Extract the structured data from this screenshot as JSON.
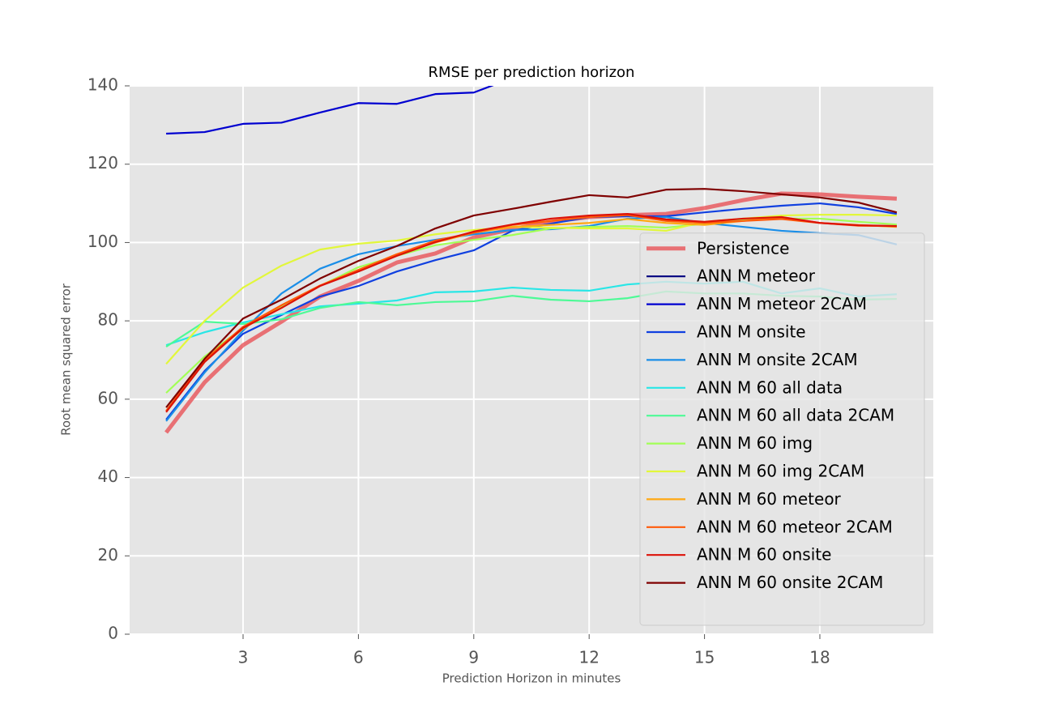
{
  "chart_data": {
    "type": "line",
    "title": "RMSE per prediction horizon",
    "x_label": "Prediction Horizon in minutes",
    "y_label": "Root mean squared error",
    "x": [
      1,
      2,
      3,
      4,
      5,
      6,
      7,
      8,
      9,
      10,
      11,
      12,
      13,
      14,
      15,
      16,
      17,
      18,
      19,
      20
    ],
    "xlim": [
      0.05,
      20.95
    ],
    "ylim": [
      0,
      140
    ],
    "xticks": [
      3,
      6,
      9,
      12,
      15,
      18
    ],
    "yticks": [
      0,
      20,
      40,
      60,
      80,
      100,
      120,
      140
    ],
    "grid": true,
    "legend": "lower right",
    "series": [
      {
        "name": "Persistence",
        "color": "#e8484e",
        "linewidth": 5,
        "alpha": 0.75,
        "values": [
          51.5,
          64.3,
          73.8,
          79.8,
          86.2,
          90.2,
          94.9,
          97.2,
          101.3,
          103.4,
          105.3,
          106.5,
          107,
          107.3,
          108.8,
          110.8,
          112.5,
          112.3,
          111.7,
          111.2
        ]
      },
      {
        "name": "ANN M meteor",
        "color": "#00007f",
        "values": [
          null,
          null,
          null,
          null,
          null,
          null,
          null,
          null,
          null,
          null,
          null,
          null,
          null,
          null,
          null,
          null,
          null,
          null,
          null,
          null
        ]
      },
      {
        "name": "ANN M meteor 2CAM",
        "color": "#0000d0",
        "values": [
          127.8,
          128.2,
          130.3,
          130.6,
          133.2,
          135.6,
          135.4,
          137.9,
          138.3,
          142,
          null,
          null,
          null,
          null,
          null,
          null,
          null,
          null,
          null,
          null
        ]
      },
      {
        "name": "ANN M onsite",
        "color": "#1040e0",
        "values": [
          54.8,
          67.2,
          76.7,
          81.5,
          86.2,
          88.9,
          92.6,
          95.5,
          98,
          103,
          104.8,
          106.5,
          106.7,
          106.7,
          107.7,
          108.6,
          109.4,
          110,
          109,
          107.3
        ]
      },
      {
        "name": "ANN M onsite 2CAM",
        "color": "#1a8ee8",
        "values": [
          54.4,
          66.8,
          77.5,
          87,
          93.3,
          97,
          99.1,
          100.7,
          102.1,
          103.2,
          103.4,
          104.2,
          106.1,
          106.5,
          105,
          104,
          103,
          102.4,
          101.9,
          99.5
        ]
      },
      {
        "name": "ANN M 60 all data",
        "color": "#29e6e6",
        "values": [
          73.8,
          77.1,
          79.6,
          81.7,
          83.7,
          84.4,
          85.2,
          87.3,
          87.5,
          88.5,
          87.9,
          87.7,
          89.3,
          90,
          89.5,
          90,
          87,
          88.3,
          86.2,
          86.8
        ]
      },
      {
        "name": "ANN M 60 all data 2CAM",
        "color": "#4dfa96",
        "values": [
          73.4,
          79.8,
          79.2,
          80.4,
          83.3,
          84.8,
          84,
          84.8,
          85,
          86.4,
          85.4,
          85,
          85.8,
          87.5,
          87,
          87,
          86.4,
          86.2,
          85.4,
          85.6
        ]
      },
      {
        "name": "ANN M 60 img",
        "color": "#a2ff56",
        "values": [
          61.6,
          70.9,
          78.2,
          83.7,
          88.9,
          93.7,
          96.6,
          99.3,
          100.7,
          101.9,
          103.6,
          104,
          104.2,
          103.8,
          104.8,
          105.9,
          106.1,
          106.1,
          105.3,
          104.6
        ]
      },
      {
        "name": "ANN M 60 img 2CAM",
        "color": "#e2f73a",
        "values": [
          69,
          80,
          88.5,
          94.1,
          98.2,
          99.7,
          100.5,
          102.1,
          103.2,
          104,
          103.8,
          103.6,
          103.6,
          103,
          105.3,
          106.1,
          106.9,
          107.1,
          107.1,
          106.9
        ]
      },
      {
        "name": "ANN M 60 meteor",
        "color": "#ffa812",
        "values": [
          57,
          70,
          78,
          84,
          89,
          93,
          97,
          100,
          102.5,
          104,
          104.5,
          105,
          106,
          105,
          104.5,
          105.5,
          106.5,
          105,
          104.5,
          104
        ]
      },
      {
        "name": "ANN M 60 meteor 2CAM",
        "color": "#ff5a0a",
        "values": [
          57,
          70,
          78.5,
          84,
          89,
          93,
          97,
          100.5,
          102.5,
          104.5,
          105.5,
          106.5,
          107,
          105.5,
          105,
          105.5,
          106,
          105,
          104.3,
          104.2
        ]
      },
      {
        "name": "ANN M 60 onsite",
        "color": "#dc1208",
        "values": [
          56.7,
          69.5,
          78.2,
          83.3,
          88.9,
          92.6,
          96.6,
          100.1,
          102.8,
          104.6,
          106.1,
          106.9,
          107.3,
          105.9,
          105.3,
          106.1,
          106.5,
          105,
          104.4,
          104.2
        ]
      },
      {
        "name": "ANN M 60 onsite 2CAM",
        "color": "#7f0000",
        "values": [
          57.9,
          70.3,
          80.6,
          85.4,
          90.8,
          95.3,
          99.1,
          103.6,
          106.9,
          108.6,
          110.4,
          112.1,
          111.5,
          113.5,
          113.7,
          113.1,
          112.3,
          111.5,
          110.2,
          107.7
        ]
      }
    ]
  }
}
